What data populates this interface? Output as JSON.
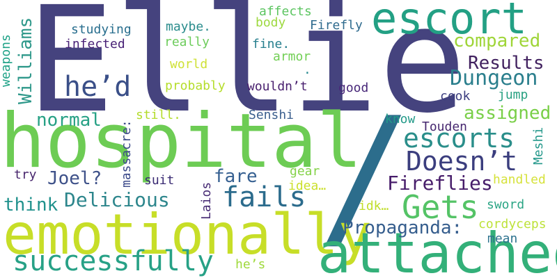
{
  "words": [
    {
      "id": "ellie",
      "text": "Ellie",
      "color": "#45437e"
    },
    {
      "id": "hospital",
      "text": "hospital",
      "color": "#6dcc54"
    },
    {
      "id": "slash",
      "text": "/",
      "color": "#2c6d8c"
    },
    {
      "id": "emotionally",
      "text": "emotionally",
      "color": "#c7de28"
    },
    {
      "id": "attached",
      "text": "attached",
      "color": "#33b079"
    },
    {
      "id": "escort",
      "text": "escort",
      "color": "#23a084"
    },
    {
      "id": "gets",
      "text": "Gets",
      "color": "#54c366"
    },
    {
      "id": "successfully",
      "text": "successfully",
      "color": "#27a186"
    },
    {
      "id": "doesnt",
      "text": "Doesn’t",
      "color": "#3b3e7e"
    },
    {
      "id": "fails",
      "text": "fails",
      "color": "#2b6b8c"
    },
    {
      "id": "escorts",
      "text": "escorts",
      "color": "#2a8e8a"
    },
    {
      "id": "hed",
      "text": "he’d",
      "color": "#3a4f88"
    },
    {
      "id": "dungeon",
      "text": "Dungeon",
      "color": "#2b7f8d"
    },
    {
      "id": "delicious",
      "text": "Delicious",
      "color": "#2d868c"
    },
    {
      "id": "propaganda",
      "text": "Propaganda:",
      "color": "#355d8d"
    },
    {
      "id": "fireflies",
      "text": "Fireflies",
      "color": "#471d6a"
    },
    {
      "id": "results",
      "text": "Results",
      "color": "#41215f"
    },
    {
      "id": "compared",
      "text": "compared",
      "color": "#9fd538"
    },
    {
      "id": "assigned",
      "text": "assigned",
      "color": "#79cf48"
    },
    {
      "id": "normal",
      "text": "normal",
      "color": "#27a185"
    },
    {
      "id": "think",
      "text": "think",
      "color": "#20918c"
    },
    {
      "id": "joel",
      "text": "Joel?",
      "color": "#3e5189"
    },
    {
      "id": "fare",
      "text": "fare",
      "color": "#366091"
    },
    {
      "id": "williams",
      "text": "Williams",
      "color": "#2e988a"
    },
    {
      "id": "studying",
      "text": "studying",
      "color": "#286e8e"
    },
    {
      "id": "infected",
      "text": "infected",
      "color": "#482176"
    },
    {
      "id": "maybe",
      "text": "maybe.",
      "color": "#2a8c8c"
    },
    {
      "id": "really",
      "text": "really",
      "color": "#6dcc5c"
    },
    {
      "id": "world",
      "text": "world",
      "color": "#cfe136"
    },
    {
      "id": "probably",
      "text": "probably",
      "color": "#b5dd2b"
    },
    {
      "id": "affects",
      "text": "affects",
      "color": "#5cc561"
    },
    {
      "id": "body",
      "text": "body",
      "color": "#9dd93f"
    },
    {
      "id": "firefly",
      "text": "Firefly",
      "color": "#2f6b8e"
    },
    {
      "id": "fine",
      "text": "fine.",
      "color": "#277f8e"
    },
    {
      "id": "armor",
      "text": "armor",
      "color": "#72cf55"
    },
    {
      "id": "dot",
      "text": ".",
      "color": "#23888e"
    },
    {
      "id": "wouldnt",
      "text": "wouldn’t",
      "color": "#481f6e"
    },
    {
      "id": "good",
      "text": "good",
      "color": "#482879"
    },
    {
      "id": "cook",
      "text": "cook",
      "color": "#3b3d7f"
    },
    {
      "id": "jump",
      "text": "jump",
      "color": "#29a182"
    },
    {
      "id": "still",
      "text": "still.",
      "color": "#b3dc2b"
    },
    {
      "id": "senshi",
      "text": "Senshi",
      "color": "#3b5f8e"
    },
    {
      "id": "know",
      "text": "know",
      "color": "#239a89"
    },
    {
      "id": "touden",
      "text": "Touden",
      "color": "#46276f"
    },
    {
      "id": "massacre",
      "text": "massacre:",
      "color": "#3c4a8a"
    },
    {
      "id": "meshi",
      "text": "Meshi",
      "color": "#24988b"
    },
    {
      "id": "weapons",
      "text": "weapons",
      "color": "#1fa287"
    },
    {
      "id": "try",
      "text": "try",
      "color": "#48266d"
    },
    {
      "id": "suit",
      "text": "suit",
      "color": "#3a2b73"
    },
    {
      "id": "gear",
      "text": "gear",
      "color": "#85d34a"
    },
    {
      "id": "idea",
      "text": "idea…",
      "color": "#cbe02d"
    },
    {
      "id": "handled",
      "text": "handled",
      "color": "#d6e23b"
    },
    {
      "id": "laios",
      "text": "Laios",
      "color": "#472b74"
    },
    {
      "id": "idk",
      "text": "idk…",
      "color": "#c0de2a"
    },
    {
      "id": "sword",
      "text": "sword",
      "color": "#2ba585"
    },
    {
      "id": "cordyceps",
      "text": "cordyceps",
      "color": "#bde239"
    },
    {
      "id": "mean",
      "text": "mean",
      "color": "#2c728e"
    },
    {
      "id": "hes",
      "text": "he’s",
      "color": "#9fd93c"
    }
  ]
}
